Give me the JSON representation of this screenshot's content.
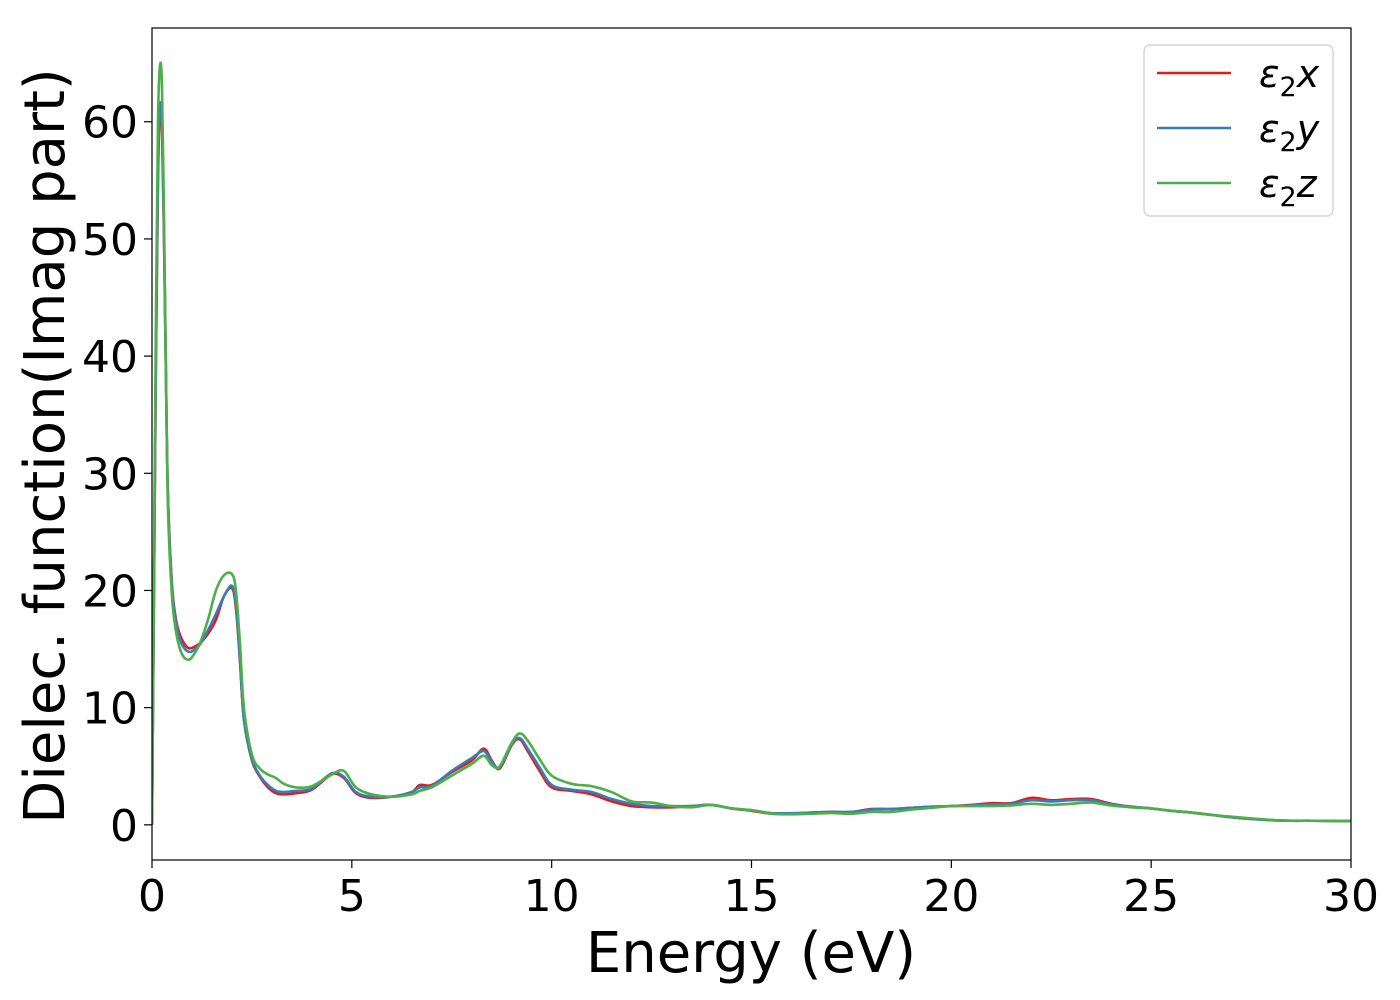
{
  "chart_data": {
    "type": "line",
    "xlabel": "Energy (eV)",
    "ylabel": "Dielec. function(Imag part)",
    "xlim": [
      0,
      30
    ],
    "ylim": [
      -3,
      68
    ],
    "xticks": [
      0,
      5,
      10,
      15,
      20,
      25,
      30
    ],
    "xtick_labels": [
      "0",
      "5",
      "10",
      "15",
      "20",
      "25",
      "30"
    ],
    "yticks": [
      0,
      10,
      20,
      30,
      40,
      50,
      60
    ],
    "ytick_labels": [
      "0",
      "10",
      "20",
      "30",
      "40",
      "50",
      "60"
    ],
    "grid": false,
    "legend_position": "top-right",
    "series": [
      {
        "name": "ε2x",
        "legend_base": "ε",
        "legend_sub": "2",
        "legend_var": "x",
        "color": "#e41a1c",
        "x": [
          0,
          0.05,
          0.1,
          0.15,
          0.2,
          0.25,
          0.3,
          0.35,
          0.4,
          0.5,
          0.6,
          0.7,
          0.8,
          0.9,
          1.0,
          1.2,
          1.4,
          1.6,
          1.8,
          2.0,
          2.1,
          2.2,
          2.3,
          2.5,
          2.7,
          2.9,
          3.1,
          3.3,
          3.6,
          4.0,
          4.5,
          4.8,
          5.1,
          5.5,
          6.0,
          6.5,
          6.7,
          7.0,
          7.5,
          8.0,
          8.3,
          8.5,
          8.7,
          9.0,
          9.2,
          9.4,
          9.7,
          10.0,
          10.5,
          11.0,
          11.5,
          12.0,
          12.5,
          13.0,
          13.5,
          14.0,
          14.5,
          15.0,
          15.5,
          16.0,
          16.5,
          17.0,
          17.5,
          18.0,
          18.5,
          19.0,
          19.5,
          20.0,
          20.5,
          21.0,
          21.5,
          22.0,
          22.5,
          23.0,
          23.5,
          24.0,
          24.5,
          25.0,
          25.5,
          26.0,
          26.5,
          27.0,
          27.5,
          28.0,
          28.5,
          29.0,
          29.5,
          30.0
        ],
        "y": [
          0,
          20,
          40,
          55,
          61,
          59.5,
          50,
          38,
          28,
          20.5,
          17.5,
          16.2,
          15.5,
          15.1,
          15.1,
          15.5,
          16.3,
          17.5,
          19.5,
          20.2,
          18.5,
          14,
          9,
          5.5,
          4.1,
          3.2,
          2.7,
          2.6,
          2.7,
          3.0,
          4.3,
          4.0,
          2.7,
          2.3,
          2.4,
          2.8,
          3.4,
          3.4,
          4.5,
          5.5,
          6.5,
          5.5,
          4.8,
          6.8,
          7.3,
          6.3,
          4.6,
          3.2,
          2.9,
          2.6,
          2.0,
          1.6,
          1.5,
          1.5,
          1.6,
          1.7,
          1.4,
          1.2,
          0.95,
          0.95,
          1.05,
          1.1,
          1.1,
          1.35,
          1.35,
          1.45,
          1.55,
          1.6,
          1.7,
          1.85,
          1.85,
          2.3,
          2.1,
          2.2,
          2.2,
          1.8,
          1.55,
          1.4,
          1.2,
          1.05,
          0.85,
          0.65,
          0.5,
          0.4,
          0.35,
          0.35,
          0.33,
          0.32
        ]
      },
      {
        "name": "ε2y",
        "legend_base": "ε",
        "legend_sub": "2",
        "legend_var": "y",
        "color": "#377eb8",
        "x": [
          0,
          0.05,
          0.1,
          0.15,
          0.2,
          0.25,
          0.3,
          0.35,
          0.4,
          0.5,
          0.6,
          0.7,
          0.8,
          0.9,
          1.0,
          1.2,
          1.4,
          1.6,
          1.8,
          2.0,
          2.1,
          2.2,
          2.3,
          2.5,
          2.7,
          2.9,
          3.1,
          3.3,
          3.6,
          4.0,
          4.5,
          4.8,
          5.1,
          5.5,
          6.0,
          6.5,
          6.7,
          7.0,
          7.5,
          8.0,
          8.3,
          8.5,
          8.7,
          9.0,
          9.2,
          9.4,
          9.7,
          10.0,
          10.5,
          11.0,
          11.5,
          12.0,
          12.5,
          13.0,
          13.5,
          14.0,
          14.5,
          15.0,
          15.5,
          16.0,
          16.5,
          17.0,
          17.5,
          18.0,
          18.5,
          19.0,
          19.5,
          20.0,
          20.5,
          21.0,
          21.5,
          22.0,
          22.5,
          23.0,
          23.5,
          24.0,
          24.5,
          25.0,
          25.5,
          26.0,
          26.5,
          27.0,
          27.5,
          28.0,
          28.5,
          29.0,
          29.5,
          30.0
        ],
        "y": [
          0,
          20,
          41,
          56,
          61.3,
          60,
          50.5,
          38,
          28,
          20.3,
          17.2,
          15.8,
          15.1,
          14.8,
          14.8,
          15.4,
          16.6,
          18.0,
          19.5,
          20.4,
          18.8,
          14.2,
          9,
          5.6,
          4.2,
          3.4,
          2.9,
          2.8,
          2.9,
          3.1,
          4.4,
          4.1,
          2.8,
          2.4,
          2.4,
          2.8,
          3.2,
          3.3,
          4.6,
          5.7,
          6.3,
          5.4,
          4.9,
          6.9,
          7.4,
          6.5,
          4.9,
          3.4,
          3.0,
          2.8,
          2.2,
          1.8,
          1.6,
          1.6,
          1.6,
          1.7,
          1.4,
          1.25,
          1.0,
          1.0,
          1.05,
          1.1,
          1.1,
          1.3,
          1.35,
          1.45,
          1.55,
          1.6,
          1.65,
          1.75,
          1.8,
          2.1,
          2.0,
          2.1,
          2.1,
          1.75,
          1.55,
          1.4,
          1.2,
          1.05,
          0.85,
          0.65,
          0.5,
          0.4,
          0.35,
          0.35,
          0.33,
          0.32
        ]
      },
      {
        "name": "ε2z",
        "legend_base": "ε",
        "legend_sub": "2",
        "legend_var": "z",
        "color": "#4daf4a",
        "x": [
          0,
          0.05,
          0.1,
          0.15,
          0.2,
          0.25,
          0.3,
          0.35,
          0.4,
          0.5,
          0.6,
          0.7,
          0.8,
          0.9,
          1.0,
          1.2,
          1.4,
          1.6,
          1.8,
          2.0,
          2.1,
          2.2,
          2.3,
          2.5,
          2.7,
          2.9,
          3.1,
          3.3,
          3.6,
          4.0,
          4.5,
          4.8,
          5.1,
          5.5,
          6.0,
          6.5,
          6.7,
          7.0,
          7.5,
          8.0,
          8.3,
          8.5,
          8.7,
          9.0,
          9.2,
          9.4,
          9.7,
          10.0,
          10.5,
          11.0,
          11.5,
          12.0,
          12.5,
          13.0,
          13.5,
          14.0,
          14.5,
          15.0,
          15.5,
          16.0,
          16.5,
          17.0,
          17.5,
          18.0,
          18.5,
          19.0,
          19.5,
          20.0,
          20.5,
          21.0,
          21.5,
          22.0,
          22.5,
          23.0,
          23.5,
          24.0,
          24.5,
          25.0,
          25.5,
          26.0,
          26.5,
          27.0,
          27.5,
          28.0,
          28.5,
          29.0,
          29.5,
          30.0
        ],
        "y": [
          0,
          22,
          44,
          60,
          64.8,
          63,
          52,
          38.5,
          27,
          19.5,
          16.5,
          15.0,
          14.3,
          14.1,
          14.3,
          15.5,
          17.5,
          20.0,
          21.3,
          21.4,
          20.0,
          15.5,
          10,
          6.0,
          4.8,
          4.3,
          4.0,
          3.5,
          3.2,
          3.3,
          4.3,
          4.6,
          3.2,
          2.6,
          2.4,
          2.6,
          2.9,
          3.2,
          4.2,
          5.2,
          5.9,
          5.1,
          5.0,
          7.0,
          7.8,
          7.2,
          5.6,
          4.2,
          3.5,
          3.3,
          2.8,
          2.0,
          1.9,
          1.6,
          1.5,
          1.7,
          1.4,
          1.25,
          0.95,
          0.9,
          0.95,
          1.0,
          0.95,
          1.1,
          1.1,
          1.3,
          1.45,
          1.6,
          1.6,
          1.6,
          1.65,
          1.8,
          1.7,
          1.8,
          1.9,
          1.65,
          1.5,
          1.4,
          1.2,
          1.05,
          0.85,
          0.7,
          0.55,
          0.42,
          0.36,
          0.35,
          0.33,
          0.32
        ]
      }
    ]
  }
}
